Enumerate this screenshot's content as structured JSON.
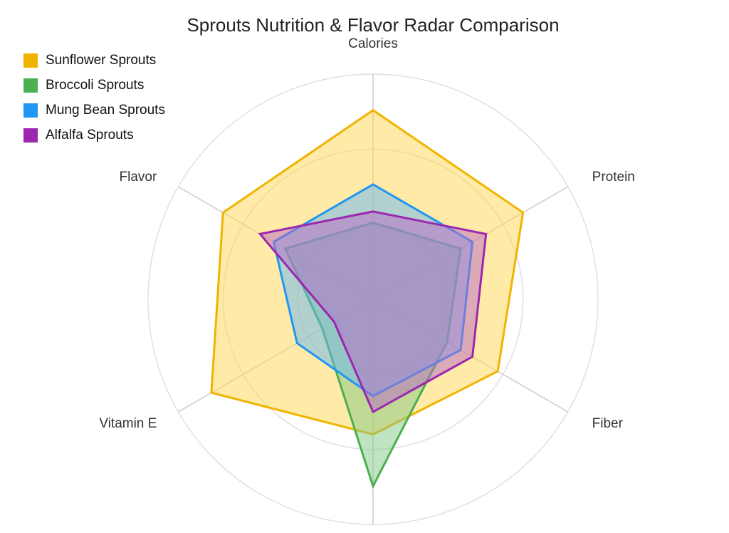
{
  "chart_data": {
    "type": "radar",
    "title": "Sprouts Nutrition & Flavor Radar Comparison",
    "axes": [
      "Calories",
      "Protein",
      "Fiber",
      "",
      "Vitamin E",
      "Flavor"
    ],
    "range": [
      0,
      100
    ],
    "grid": true,
    "legend_position": "top-left",
    "series": [
      {
        "name": "Sunflower Sprouts",
        "color": "#f0b400",
        "fill": "#ffd54f",
        "values": [
          84,
          77,
          64,
          60,
          83,
          77
        ]
      },
      {
        "name": "Broccoli Sprouts",
        "color": "#4caf50",
        "fill": "#81c784",
        "values": [
          34,
          45,
          38,
          83,
          26,
          45
        ]
      },
      {
        "name": "Mung Bean Sprouts",
        "color": "#2196f3",
        "fill": "#64b5f6",
        "values": [
          51,
          51,
          45,
          43,
          39,
          51
        ]
      },
      {
        "name": "Alfalfa Sprouts",
        "color": "#9c27b0",
        "fill": "#ba68c8",
        "values": [
          39,
          58,
          51,
          50,
          20,
          58
        ]
      }
    ]
  }
}
